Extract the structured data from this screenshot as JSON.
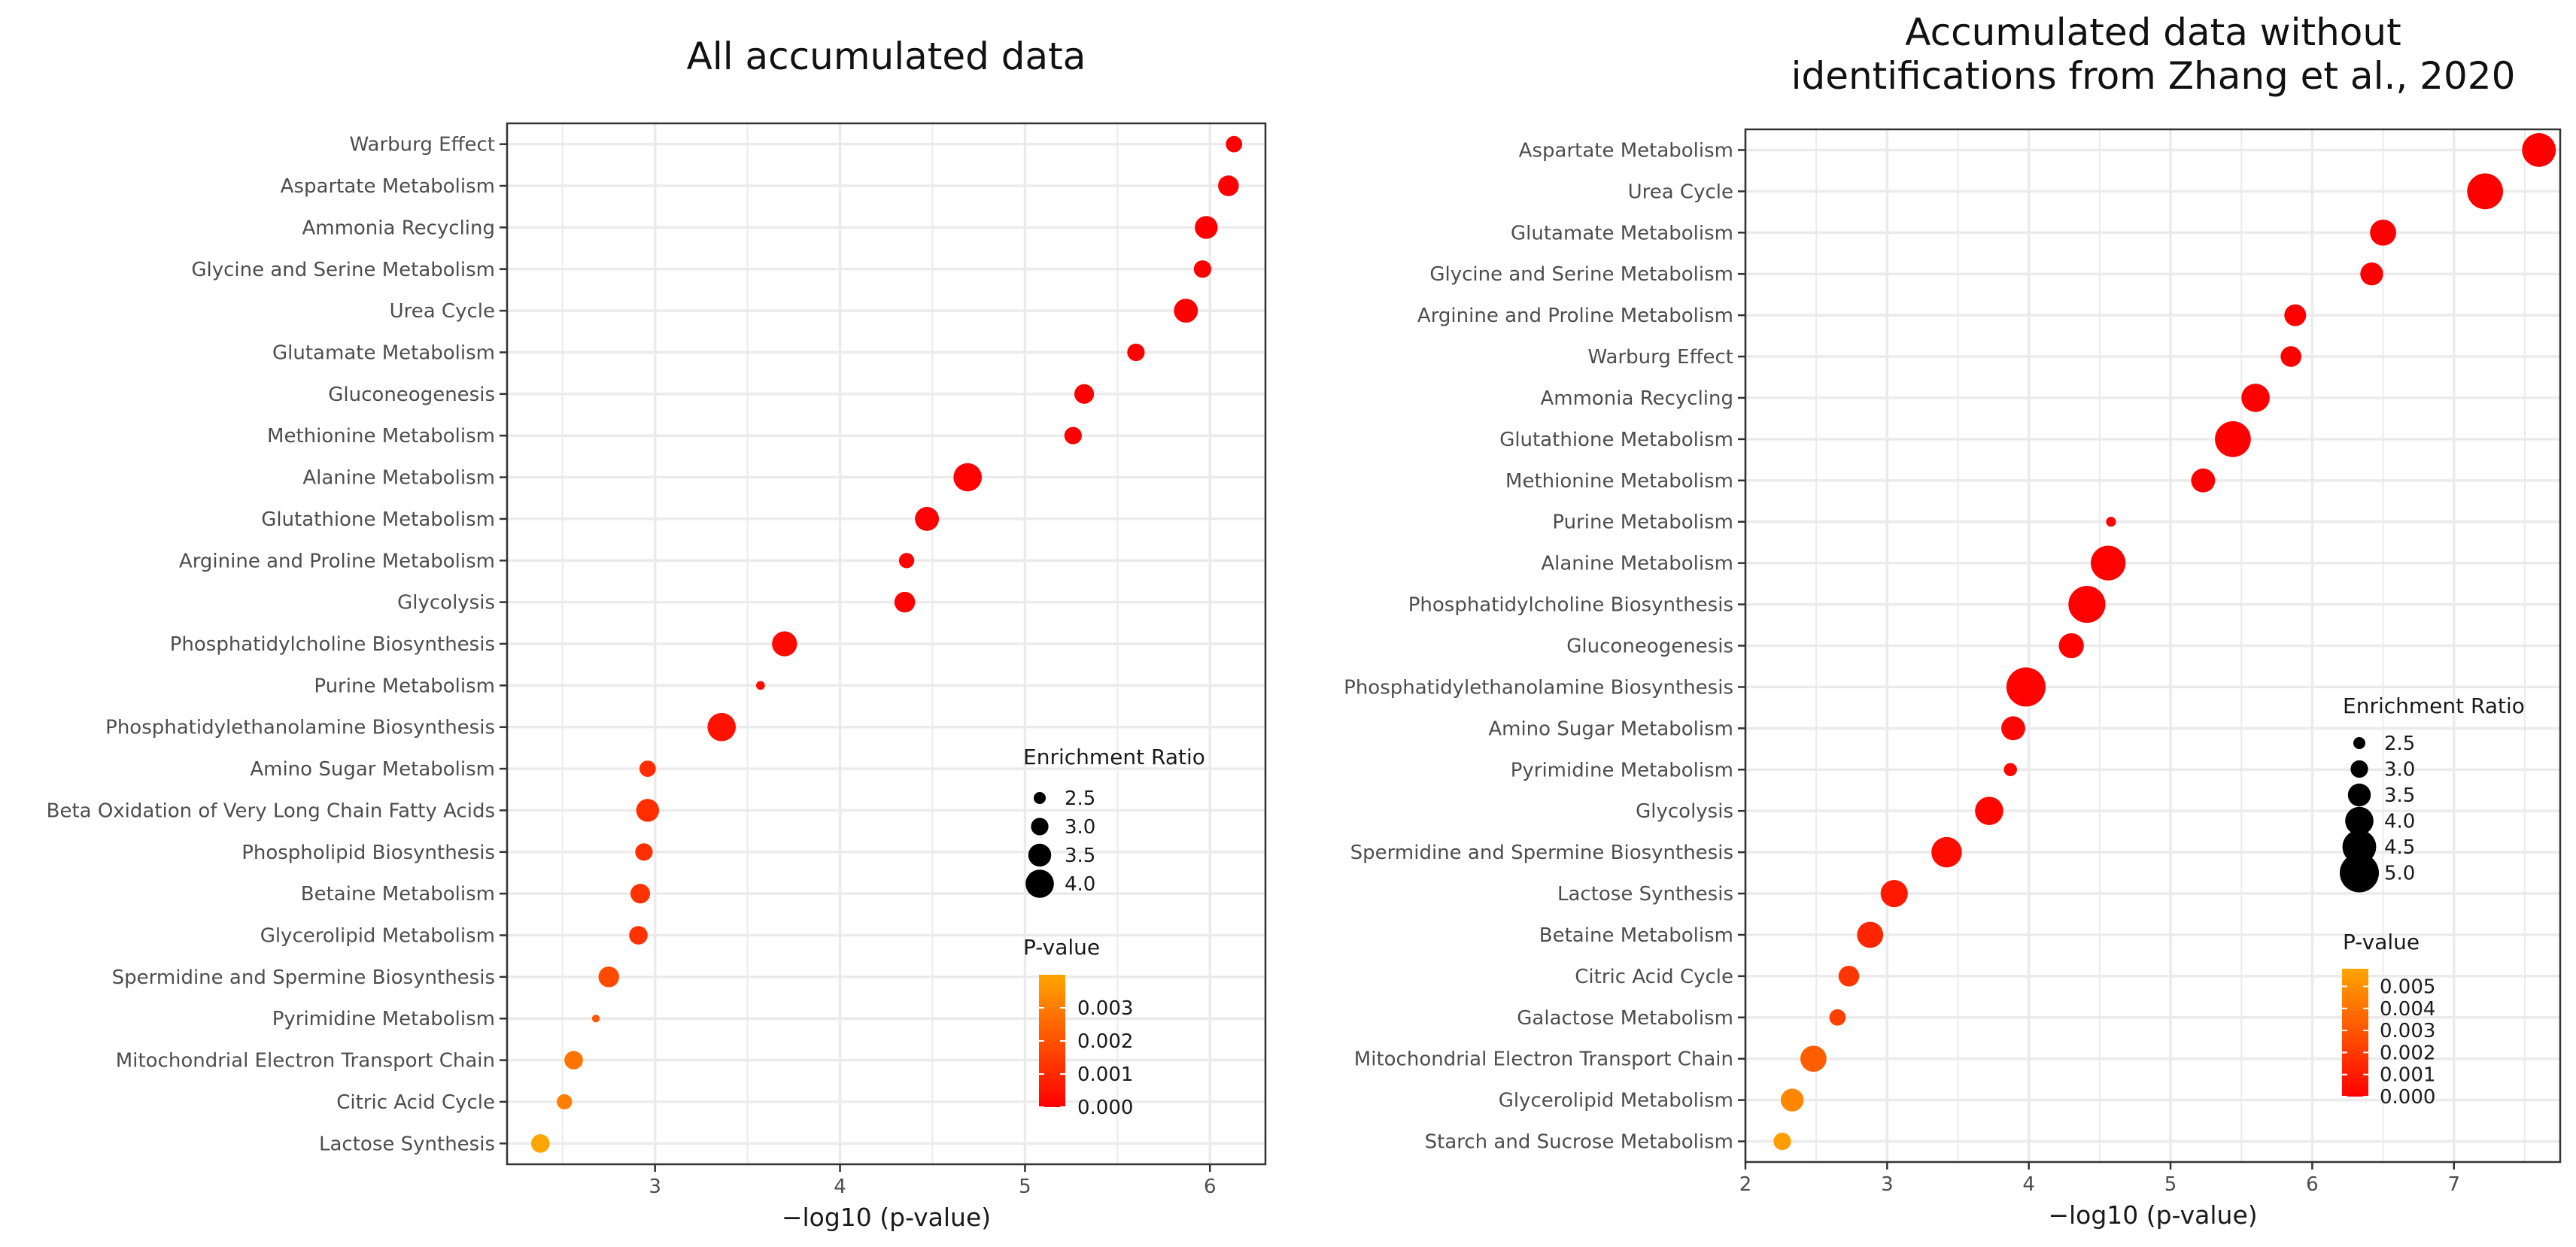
{
  "chart_data": [
    {
      "type": "scatter",
      "title_lines": [
        "All accumulated data"
      ],
      "xlabel": "−log10 (p-value)",
      "ylabel": "",
      "xlim": [
        2.2,
        6.3
      ],
      "xticks": [
        3,
        4,
        5,
        6
      ],
      "grid": true,
      "legend_placement": "right-inside",
      "categories": [
        "Warburg Effect",
        "Aspartate Metabolism",
        "Ammonia Recycling",
        "Glycine and Serine Metabolism",
        "Urea Cycle",
        "Glutamate Metabolism",
        "Gluconeogenesis",
        "Methionine Metabolism",
        "Alanine Metabolism",
        "Glutathione Metabolism",
        "Arginine and Proline Metabolism",
        "Glycolysis",
        "Phosphatidylcholine Biosynthesis",
        "Purine Metabolism",
        "Phosphatidylethanolamine Biosynthesis",
        "Amino Sugar Metabolism",
        "Beta Oxidation of Very Long Chain Fatty Acids",
        "Phospholipid Biosynthesis",
        "Betaine Metabolism",
        "Glycerolipid Metabolism",
        "Spermidine and Spermine Biosynthesis",
        "Pyrimidine Metabolism",
        "Mitochondrial Electron Transport Chain",
        "Citric Acid Cycle",
        "Lactose Synthesis"
      ],
      "x": [
        6.13,
        6.1,
        5.98,
        5.96,
        5.87,
        5.6,
        5.32,
        5.26,
        4.69,
        4.47,
        4.36,
        4.35,
        3.7,
        3.57,
        3.36,
        2.96,
        2.96,
        2.94,
        2.92,
        2.91,
        2.75,
        2.68,
        2.56,
        2.51,
        2.38
      ],
      "enrichment_ratio": [
        2.9,
        3.3,
        3.5,
        3.0,
        3.6,
        3.0,
        3.2,
        3.0,
        4.0,
        3.6,
        2.8,
        3.3,
        3.7,
        2.2,
        4.0,
        2.9,
        3.5,
        3.0,
        3.2,
        3.1,
        3.3,
        2.1,
        3.1,
        2.8,
        3.1
      ],
      "p_value": [
        7e-07,
        8e-07,
        1e-06,
        1e-06,
        1.3e-06,
        2.5e-06,
        4.8e-06,
        5.5e-06,
        2e-05,
        3.4e-05,
        4.4e-05,
        4.5e-05,
        0.0002,
        0.00027,
        0.00044,
        0.0011,
        0.0011,
        0.00115,
        0.0012,
        0.00123,
        0.0018,
        0.0021,
        0.0028,
        0.0031,
        0.0042
      ],
      "legend": {
        "size_title": "Enrichment Ratio",
        "size_values": [
          2.5,
          3.0,
          3.5,
          4.0
        ],
        "size_labels": [
          "2.5",
          "3.0",
          "3.5",
          "4.0"
        ],
        "color_title": "P-value",
        "color_min": 0.0,
        "color_max": 0.004,
        "color_ticks": [
          0.003,
          0.002,
          0.001,
          0.0
        ],
        "color_tick_labels": [
          "0.003",
          "0.002",
          "0.001",
          "0.000"
        ]
      }
    },
    {
      "type": "scatter",
      "title_lines": [
        "Accumulated data without",
        "identifications from Zhang et al., 2020"
      ],
      "xlabel": "−log10 (p-value)",
      "ylabel": "",
      "xlim": [
        2.0,
        7.75
      ],
      "xticks": [
        2,
        3,
        4,
        5,
        6,
        7
      ],
      "grid": true,
      "legend_placement": "right-inside",
      "categories": [
        "Aspartate Metabolism",
        "Urea Cycle",
        "Glutamate Metabolism",
        "Glycine and Serine Metabolism",
        "Arginine and Proline Metabolism",
        "Warburg Effect",
        "Ammonia Recycling",
        "Glutathione Metabolism",
        "Methionine Metabolism",
        "Purine Metabolism",
        "Alanine Metabolism",
        "Phosphatidylcholine Biosynthesis",
        "Gluconeogenesis",
        "Phosphatidylethanolamine Biosynthesis",
        "Amino Sugar Metabolism",
        "Pyrimidine Metabolism",
        "Glycolysis",
        "Spermidine and Spermine Biosynthesis",
        "Lactose Synthesis",
        "Betaine Metabolism",
        "Citric Acid Cycle",
        "Galactose Metabolism",
        "Mitochondrial Electron Transport Chain",
        "Glycerolipid Metabolism",
        "Starch and Sucrose Metabolism"
      ],
      "x": [
        7.6,
        7.22,
        6.5,
        6.42,
        5.88,
        5.85,
        5.6,
        5.44,
        5.23,
        4.58,
        4.56,
        4.41,
        4.3,
        3.98,
        3.89,
        3.87,
        3.72,
        3.42,
        3.05,
        2.88,
        2.73,
        2.65,
        2.48,
        2.33,
        2.26
      ],
      "enrichment_ratio": [
        4.5,
        4.7,
        3.8,
        3.5,
        3.4,
        3.3,
        4.0,
        4.7,
        3.6,
        2.3,
        4.6,
        4.8,
        3.7,
        5.0,
        3.6,
        2.6,
        4.0,
        4.2,
        3.9,
        3.8,
        3.3,
        2.9,
        3.8,
        3.5,
        3.0
      ],
      "p_value": [
        3e-08,
        6e-08,
        3e-07,
        4e-07,
        1.3e-06,
        1.4e-06,
        2.5e-06,
        3.6e-06,
        5.9e-06,
        2.6e-05,
        2.8e-05,
        3.9e-05,
        5e-05,
        0.0001,
        0.00013,
        0.00013,
        0.00019,
        0.00038,
        0.00089,
        0.0013,
        0.0019,
        0.0022,
        0.0033,
        0.0047,
        0.0055
      ],
      "legend": {
        "size_title": "Enrichment Ratio",
        "size_values": [
          2.5,
          3.0,
          3.5,
          4.0,
          4.5,
          5.0
        ],
        "size_labels": [
          "2.5",
          "3.0",
          "3.5",
          "4.0",
          "4.5",
          "5.0"
        ],
        "color_title": "P-value",
        "color_min": 0.0,
        "color_max": 0.0058,
        "color_ticks": [
          0.005,
          0.004,
          0.003,
          0.002,
          0.001,
          0.0
        ],
        "color_tick_labels": [
          "0.005",
          "0.004",
          "0.003",
          "0.002",
          "0.001",
          "0.000"
        ]
      }
    }
  ],
  "colors": {
    "low_p": "#ff0000",
    "high_p": "#ffa500",
    "grid": "#ebebeb",
    "panel_border": "#333333",
    "text": "#4d4d4d"
  }
}
